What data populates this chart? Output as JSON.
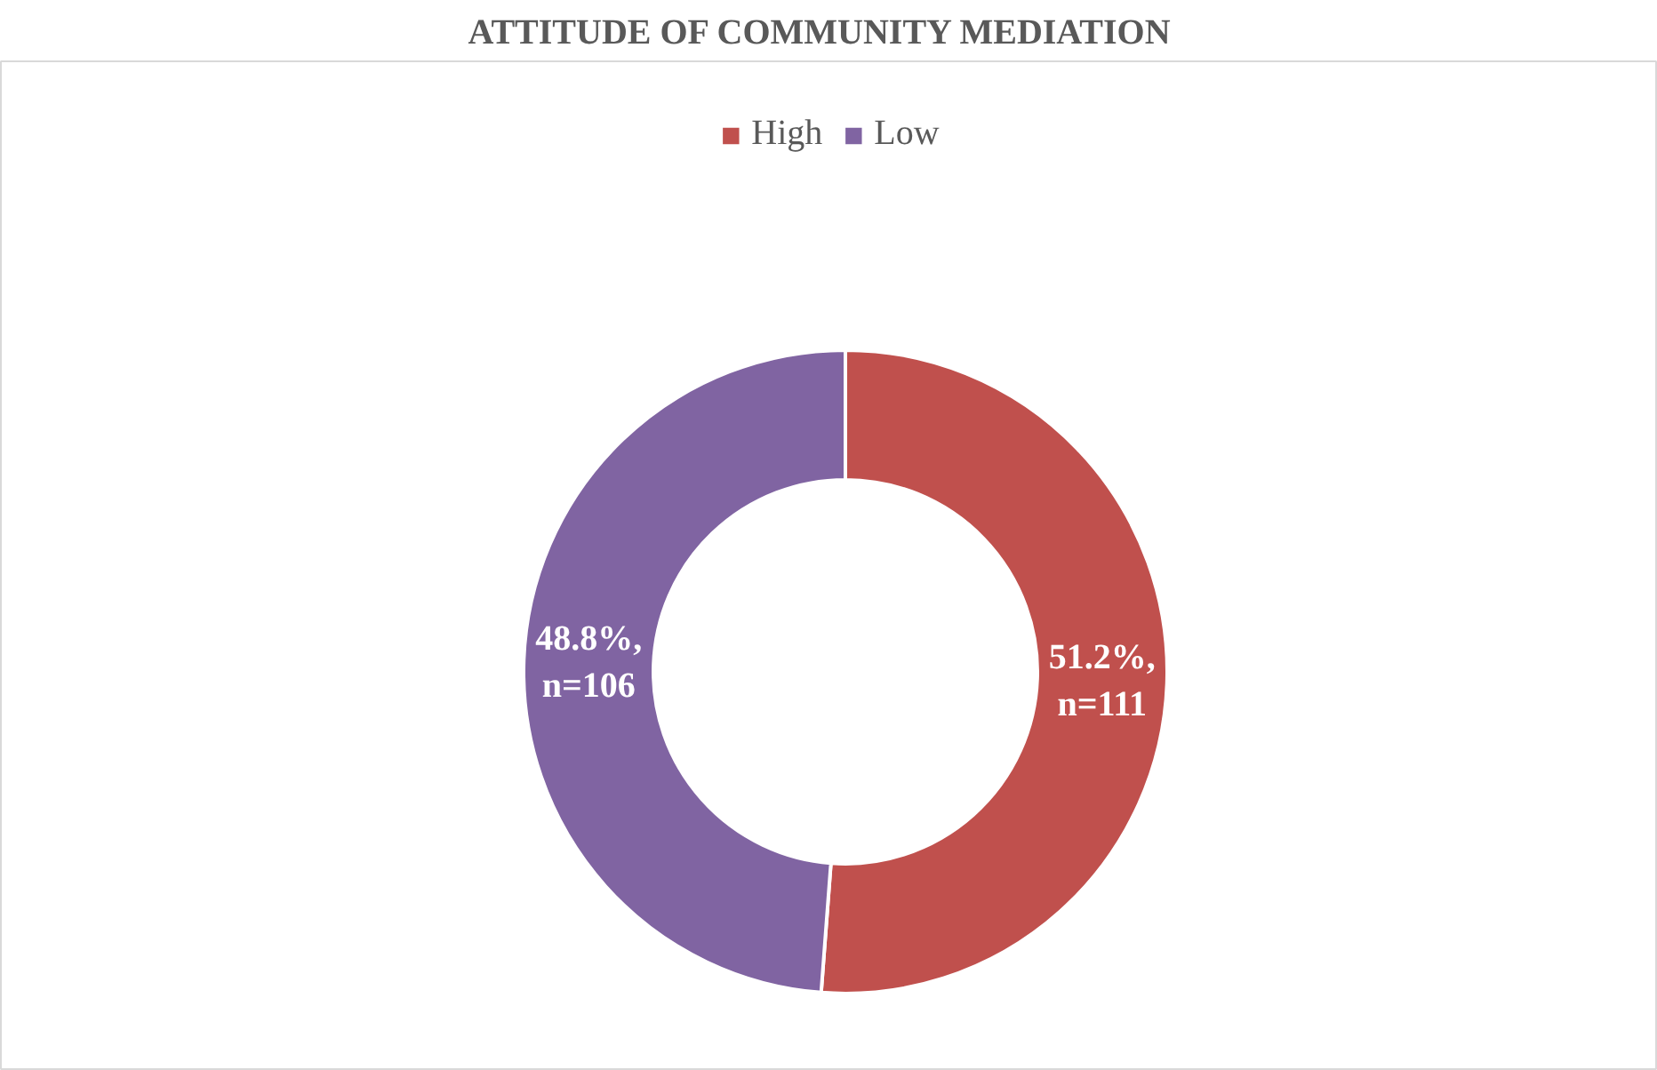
{
  "chart_data": {
    "type": "donut",
    "title": "ATTITUDE  OF COMMUNITY  MEDIATION",
    "categories": [
      "High",
      "Low"
    ],
    "values": [
      51.2,
      48.8
    ],
    "colors": [
      "#c0504d",
      "#8064a2"
    ],
    "value_labels": [
      "51.2%,\nn=111",
      "48.8%,\nn=106"
    ],
    "legend": "top"
  }
}
